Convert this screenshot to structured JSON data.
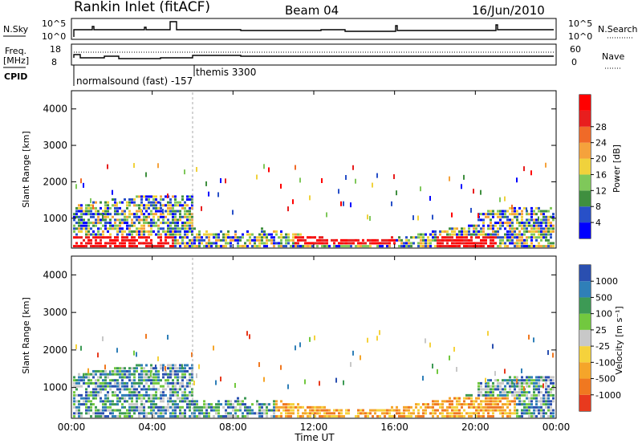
{
  "header": {
    "station": "Rankin Inlet (fitACF)",
    "beam": "Beam 04",
    "date": "16/Jun/2010"
  },
  "nsky_panel": {
    "left_label": "N.Sky",
    "left_ticks": [
      "10^5",
      "10^0"
    ],
    "right_ticks": [
      "10^5",
      "10^0"
    ],
    "right_label": "N.Search"
  },
  "freq_panel": {
    "left_label": "Freq.",
    "unit_label": "[MHz]",
    "left_ticks": [
      "18",
      "8"
    ],
    "right_ticks": [
      "60",
      "0"
    ],
    "right_label": "Nave",
    "cpid_label": "CPID",
    "cpid_texts": [
      "normalsound (fast) -157",
      "themis 3300"
    ]
  },
  "power_panel": {
    "ylabel": "Slant Range [km]",
    "yticks": [
      "1000",
      "2000",
      "3000",
      "4000"
    ],
    "colorbar_label": "Power [dB]",
    "colorbar_ticks": [
      "4",
      "8",
      "12",
      "16",
      "20",
      "24",
      "28"
    ],
    "colorbar_colors": [
      "#0000ff",
      "#2850c8",
      "#3f8f3f",
      "#7fc85a",
      "#f0d23c",
      "#f5a23c",
      "#f06a28",
      "#e81e1e",
      "#ff0000"
    ]
  },
  "velocity_panel": {
    "ylabel": "Slant Range [km]",
    "yticks": [
      "1000",
      "2000",
      "3000",
      "4000"
    ],
    "colorbar_label": "Velocity [m s⁻¹]",
    "colorbar_ticks": [
      "1000",
      "500",
      "100",
      "25",
      "-25",
      "-100",
      "-500",
      "-1000"
    ],
    "colorbar_colors": [
      "#2a4fb0",
      "#2f7fb8",
      "#3d9a55",
      "#72c83f",
      "#c8c8c8",
      "#f5d23c",
      "#f5a52a",
      "#f07820",
      "#e83a1e"
    ]
  },
  "x_axis": {
    "label": "Time UT",
    "ticks": [
      "00:00",
      "04:00",
      "08:00",
      "12:00",
      "16:00",
      "20:00",
      "00:00"
    ]
  },
  "chart_data": [
    {
      "type": "line",
      "x_hours": [
        0,
        2,
        4,
        4.8,
        5.2,
        6,
        10,
        12,
        16,
        18,
        20,
        22,
        24
      ],
      "series": [
        {
          "name": "N.Sky",
          "values": [
            0.5,
            0.6,
            0.55,
            0.8,
            0.6,
            0.55,
            0.6,
            0.55,
            0.6,
            0.55,
            0.6,
            0.55,
            0.55
          ]
        }
      ],
      "ylim": [
        0,
        1
      ]
    },
    {
      "type": "line",
      "x_hours": [
        0,
        1.5,
        2.5,
        3,
        4,
        5,
        6,
        8,
        12,
        16,
        20,
        24
      ],
      "series": [
        {
          "name": "Freq.",
          "values": [
            10,
            10,
            11.5,
            11,
            10.5,
            10.5,
            13,
            13,
            13,
            13,
            13,
            13
          ]
        }
      ],
      "ylim": [
        8,
        18
      ]
    },
    {
      "type": "heatmap",
      "title": "Power [dB]",
      "xlim": [
        0,
        24
      ],
      "ylim": [
        180,
        4500
      ],
      "ylabel": "Slant Range [km]",
      "xlabel": "Time UT"
    },
    {
      "type": "heatmap",
      "title": "Velocity [m s⁻¹]",
      "xlim": [
        0,
        24
      ],
      "ylim": [
        180,
        4500
      ],
      "ylabel": "Slant Range [km]",
      "xlabel": "Time UT"
    }
  ]
}
